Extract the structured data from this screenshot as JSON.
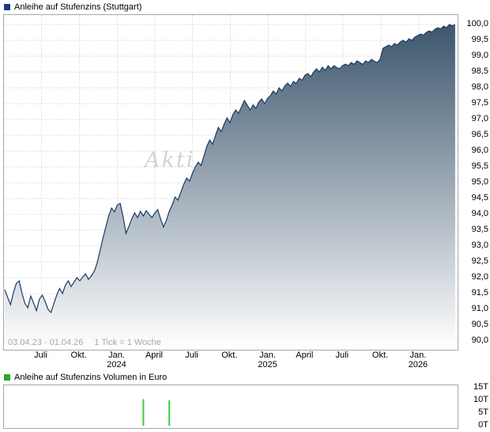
{
  "price_chart": {
    "legend": "Anleihe auf Stufenzins (Stuttgart)",
    "legend_color": "#1c3a8e",
    "range_label": "03.04.23 - 01.04.26",
    "tick_label": "1 Tick = 1 Woche",
    "watermark": "Akti"
  },
  "volume_chart": {
    "legend": "Anleihe auf Stufenzins Volumen in Euro",
    "legend_color": "#2fa52f"
  },
  "chart_data": [
    {
      "type": "area",
      "title": "Anleihe auf Stufenzins (Stuttgart)",
      "x_unit": "weeks",
      "x_start": "03.04.23",
      "x_end": "01.04.26",
      "total_weeks": 156.3,
      "ylim": [
        90.0,
        100.0
      ],
      "y_tick_step": 0.5,
      "grid": true,
      "legend_position": "top-left",
      "line_color": "#1b3a66",
      "fill_top": "#3c566d",
      "fill_bottom": "#ffffff",
      "y_tick_labels": [
        "100,0",
        "99,5",
        "99,0",
        "98,5",
        "98,0",
        "97,5",
        "97,0",
        "96,5",
        "96,0",
        "95,5",
        "95,0",
        "94,5",
        "94,0",
        "93,5",
        "93,0",
        "92,5",
        "92,0",
        "91,5",
        "91,0",
        "90,5",
        "90,0"
      ],
      "x_ticks": [
        {
          "label": "Juli",
          "week": 12.7
        },
        {
          "label": "Okt.",
          "week": 25.9
        },
        {
          "label": "Jan.",
          "sub": "2024",
          "week": 39.0
        },
        {
          "label": "April",
          "week": 52.0
        },
        {
          "label": "Juli",
          "week": 65.0
        },
        {
          "label": "Okt.",
          "week": 78.1
        },
        {
          "label": "Jan.",
          "sub": "2025",
          "week": 91.3
        },
        {
          "label": "April",
          "week": 104.1
        },
        {
          "label": "Juli",
          "week": 117.1
        },
        {
          "label": "Okt.",
          "week": 130.3
        },
        {
          "label": "Jan.",
          "sub": "2026",
          "week": 143.4
        }
      ],
      "values": [
        91.62,
        91.38,
        91.15,
        91.52,
        91.82,
        91.9,
        91.5,
        91.18,
        91.05,
        91.42,
        91.2,
        90.96,
        91.32,
        91.45,
        91.25,
        91.0,
        90.9,
        91.18,
        91.45,
        91.66,
        91.5,
        91.76,
        91.9,
        91.72,
        91.86,
        92.0,
        91.9,
        92.02,
        92.12,
        91.95,
        92.06,
        92.2,
        92.46,
        92.85,
        93.25,
        93.6,
        93.95,
        94.2,
        94.08,
        94.3,
        94.35,
        93.92,
        93.4,
        93.62,
        93.86,
        94.05,
        93.9,
        94.1,
        93.95,
        94.12,
        94.0,
        93.9,
        94.05,
        94.15,
        93.85,
        93.6,
        93.82,
        94.1,
        94.3,
        94.55,
        94.45,
        94.7,
        94.95,
        95.15,
        95.05,
        95.3,
        95.5,
        95.65,
        95.55,
        95.85,
        96.15,
        96.35,
        96.22,
        96.5,
        96.75,
        96.62,
        96.85,
        97.05,
        96.9,
        97.15,
        97.3,
        97.2,
        97.4,
        97.6,
        97.45,
        97.3,
        97.46,
        97.35,
        97.55,
        97.65,
        97.5,
        97.66,
        97.75,
        97.9,
        97.8,
        98.0,
        97.9,
        98.06,
        98.15,
        98.05,
        98.2,
        98.14,
        98.3,
        98.24,
        98.4,
        98.45,
        98.35,
        98.5,
        98.6,
        98.5,
        98.65,
        98.55,
        98.7,
        98.6,
        98.7,
        98.64,
        98.6,
        98.7,
        98.75,
        98.7,
        98.8,
        98.74,
        98.85,
        98.8,
        98.74,
        98.85,
        98.8,
        98.9,
        98.84,
        98.8,
        98.9,
        99.25,
        99.3,
        99.35,
        99.3,
        99.4,
        99.35,
        99.45,
        99.5,
        99.44,
        99.55,
        99.5,
        99.6,
        99.65,
        99.7,
        99.66,
        99.75,
        99.8,
        99.76,
        99.85,
        99.9,
        99.86,
        99.95,
        99.9,
        100.0,
        99.96,
        100.0
      ]
    },
    {
      "type": "bar",
      "title": "Anleihe auf Stufenzins Volumen in Euro",
      "ylim": [
        0,
        15000
      ],
      "grid": false,
      "bar_color": "#3ccc3c",
      "y_ticks": [
        {
          "label": "15T",
          "value": 15000
        },
        {
          "label": "10T",
          "value": 10000
        },
        {
          "label": "5T",
          "value": 5000
        },
        {
          "label": "0T",
          "value": 0
        }
      ],
      "bars": [
        {
          "week": 48,
          "value": 10500
        },
        {
          "week": 57,
          "value": 10000
        }
      ]
    }
  ]
}
